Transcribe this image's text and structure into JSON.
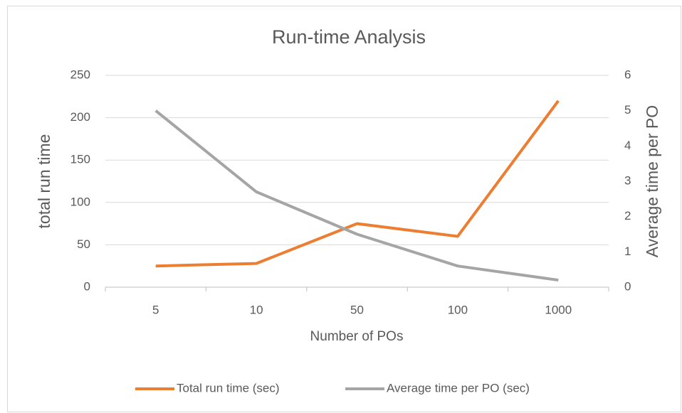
{
  "chart_data": {
    "type": "line",
    "title": "Run-time Analysis",
    "x_label": "Number of POs",
    "y_label": "total run time",
    "y2_label": "Average time per PO",
    "categories": [
      "5",
      "10",
      "50",
      "100",
      "1000"
    ],
    "series": [
      {
        "name": "Total run time (sec)",
        "color": "#ed7d31",
        "values": [
          25,
          28,
          75,
          60,
          220
        ]
      },
      {
        "name": "Average time per PO (sec)",
        "color": "#a5a5a5",
        "axis": "y2",
        "values": [
          5,
          2.7,
          1.5,
          0.6,
          0.2
        ]
      }
    ],
    "ylim": [
      0,
      250
    ],
    "yticks": [
      0,
      50,
      100,
      150,
      200,
      250
    ],
    "y2lim": [
      0,
      6
    ],
    "y2ticks": [
      0,
      1,
      2,
      3,
      4,
      5,
      6
    ],
    "grid": true,
    "legend": "bottom"
  }
}
